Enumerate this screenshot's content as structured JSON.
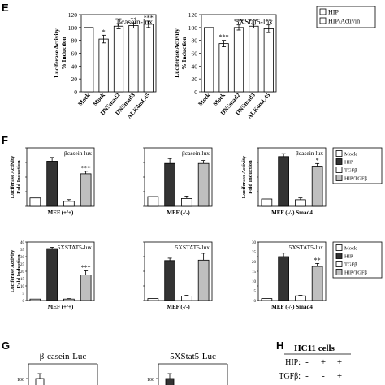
{
  "panel_letters": {
    "E": "E",
    "F": "F",
    "G": "G",
    "H": "H"
  },
  "legend_E": [
    {
      "label": "HIP",
      "fill": "#ffffff"
    },
    {
      "label": "HIP/Activin",
      "fill": "#ffffff"
    }
  ],
  "legend_F": [
    {
      "label": "Mock",
      "fill": "#ffffff"
    },
    {
      "label": "HIP",
      "fill": "#333333"
    },
    {
      "label": "TGFβ",
      "fill": "#ffffff"
    },
    {
      "label": "HIP/TGFβ",
      "fill": "#bfbfbf"
    }
  ],
  "panel_H": {
    "title": "HC11 cells",
    "rows": [
      {
        "label": "HIP:",
        "marks": [
          "-",
          "+",
          "+"
        ]
      },
      {
        "label": "TGFβ:",
        "marks": [
          "-",
          "-",
          "+"
        ]
      }
    ]
  },
  "colors": {
    "white": "#ffffff",
    "black": "#333333",
    "grey": "#bfbfbf"
  },
  "chart_data": [
    {
      "panel": "E",
      "type": "bar",
      "title": "βcasein-lux",
      "ylabel_lines": [
        "Luciferase Activity",
        "% Induction"
      ],
      "ylim": [
        0,
        120
      ],
      "yticks": [
        "0",
        "20",
        "40",
        "60",
        "80",
        "100",
        "120"
      ],
      "categories": [
        "Mock",
        "Mock",
        "DNSmad2",
        "DNSmad3",
        "ALK4mL45"
      ],
      "values": [
        100,
        82,
        102,
        103,
        105
      ],
      "errors": [
        0,
        6,
        4,
        4,
        5
      ],
      "fills": [
        "#ffffff",
        "#ffffff",
        "#ffffff",
        "#ffffff",
        "#ffffff"
      ],
      "annotations": [
        "",
        "*",
        "**",
        "**",
        "***"
      ]
    },
    {
      "panel": "E",
      "type": "bar",
      "title": "5XStat5-lux",
      "ylabel_lines": [
        "Luciferase Activity",
        "% Induction"
      ],
      "ylim": [
        0,
        120
      ],
      "yticks": [
        "0",
        "20",
        "40",
        "60",
        "80",
        "100",
        "120"
      ],
      "categories": [
        "Mock",
        "Mock",
        "DNSmad2",
        "DNSmad3",
        "ALK4mL45"
      ],
      "values": [
        100,
        75,
        100,
        102,
        98
      ],
      "errors": [
        0,
        5,
        4,
        3,
        6
      ],
      "fills": [
        "#ffffff",
        "#ffffff",
        "#ffffff",
        "#ffffff",
        "#ffffff"
      ],
      "annotations": [
        "",
        "***",
        "***",
        "***",
        "**"
      ]
    },
    {
      "panel": "F",
      "type": "bar",
      "title": "βcasein lux",
      "ylabel_lines": [
        "Luciferase Activity",
        "Fold Induction"
      ],
      "xlabel": "MEF (+/+)",
      "values": [
        1.0,
        5.4,
        0.6,
        3.9
      ],
      "errors": [
        0,
        0.45,
        0.2,
        0.3
      ],
      "ymax": 7,
      "fills": [
        "#ffffff",
        "#333333",
        "#ffffff",
        "#bfbfbf"
      ],
      "annotations": [
        "",
        "",
        "",
        "***"
      ]
    },
    {
      "panel": "F",
      "type": "bar",
      "title": "βcasein lux",
      "ylabel_lines": [],
      "xlabel": "MEF (-/-)",
      "values": [
        1.0,
        4.4,
        0.8,
        4.4
      ],
      "errors": [
        0,
        0.5,
        0.25,
        0.3
      ],
      "ymax": 6,
      "fills": [
        "#ffffff",
        "#333333",
        "#ffffff",
        "#bfbfbf"
      ],
      "annotations": [
        "",
        "",
        "",
        ""
      ]
    },
    {
      "panel": "F",
      "type": "bar",
      "title": "βcasein lux",
      "ylabel_lines": [
        "Luciferase Activity",
        "Fold Induction"
      ],
      "xlabel": "MEF (-/-) Smad4",
      "values": [
        1.0,
        6.8,
        0.9,
        5.5
      ],
      "errors": [
        0,
        0.4,
        0.25,
        0.35
      ],
      "ymax": 8,
      "fills": [
        "#ffffff",
        "#333333",
        "#ffffff",
        "#bfbfbf"
      ],
      "annotations": [
        "",
        "",
        "",
        "*"
      ]
    },
    {
      "panel": "F",
      "type": "bar",
      "title": "5XSTAT5-lux",
      "ylabel_lines": [
        "Luciferase Activity",
        "Fold Induction"
      ],
      "xlabel": "MEF (+/+)",
      "values": [
        1.0,
        35.5,
        1.0,
        17.5
      ],
      "errors": [
        0,
        0.9,
        0.3,
        2.8
      ],
      "ymax": 40,
      "yticks": [
        "0",
        "5",
        "10",
        "15",
        "20",
        "25",
        "30",
        "35",
        "40"
      ],
      "fills": [
        "#ffffff",
        "#333333",
        "#ffffff",
        "#bfbfbf"
      ],
      "annotations": [
        "",
        "",
        "",
        "***"
      ]
    },
    {
      "panel": "F",
      "type": "bar",
      "title": "5XSTAT5-lux",
      "ylabel_lines": [],
      "xlabel": "MEF (-/-)",
      "values": [
        1.0,
        20.5,
        2.3,
        20.7
      ],
      "errors": [
        0,
        1.2,
        0.4,
        3.5
      ],
      "ymax": 30,
      "fills": [
        "#ffffff",
        "#333333",
        "#ffffff",
        "#bfbfbf"
      ],
      "annotations": [
        "",
        "",
        "",
        ""
      ]
    },
    {
      "panel": "F",
      "type": "bar",
      "title": "5XSTAT5-lux",
      "ylabel_lines": [],
      "xlabel": "MEF (-/-) Smad4",
      "values": [
        1.0,
        22.5,
        2.4,
        17.5
      ],
      "errors": [
        0,
        1.8,
        0.3,
        1.5
      ],
      "ymax": 30,
      "yticks": [
        "0",
        "5",
        "10",
        "15",
        "20",
        "25",
        "30"
      ],
      "fills": [
        "#ffffff",
        "#333333",
        "#ffffff",
        "#bfbfbf"
      ],
      "annotations": [
        "",
        "",
        "",
        "**"
      ]
    },
    {
      "panel": "G",
      "type": "bar",
      "title": "β-casein-Luc",
      "ytick_top": "100",
      "values": [
        100
      ],
      "ymax": 110,
      "fills": [
        "#ffffff"
      ]
    },
    {
      "panel": "G",
      "type": "bar",
      "title": "5XStat5-Luc",
      "ytick_top": "100",
      "values": [
        100
      ],
      "ymax": 110,
      "fills": [
        "#333333"
      ]
    }
  ]
}
